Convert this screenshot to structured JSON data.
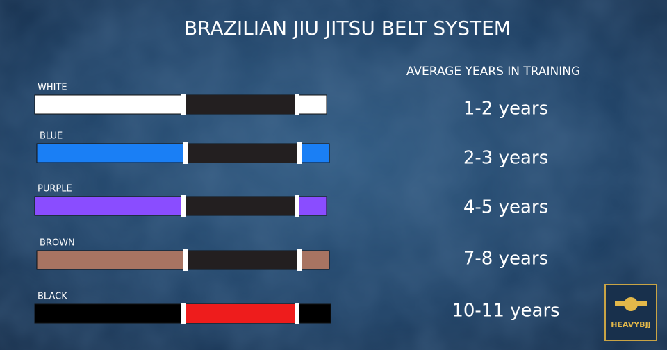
{
  "title": "BRAZILIAN JIU JITSU BELT SYSTEM",
  "column_header": "AVERAGE YEARS IN TRAINING",
  "belts": [
    {
      "name": "WHITE",
      "years": "1-2 years"
    },
    {
      "name": "BLUE",
      "years": "2-3 years"
    },
    {
      "name": "PURPLE",
      "years": "4-5 years"
    },
    {
      "name": "BROWN",
      "years": "7-8 years"
    },
    {
      "name": "BLACK",
      "years": "10-11 years"
    }
  ],
  "logo": "HEAVYBJJ"
}
